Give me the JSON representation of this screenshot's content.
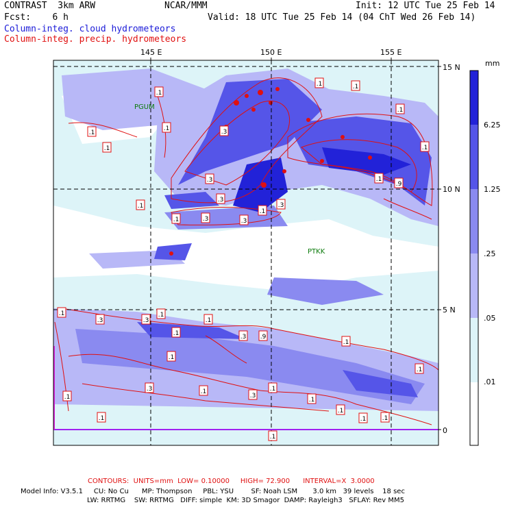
{
  "header": {
    "model": "CONTRAST  3km ARW",
    "org": "NCAR/MMM",
    "init": "Init: 12 UTC Tue 25 Feb 14",
    "fcst": "Fcst:    6 h",
    "valid": "Valid: 18 UTC Tue 25 Feb 14 (04 ChT Wed 26 Feb 14)",
    "field1": "Column-integ. cloud hydrometeors",
    "field2": "Column-integ. precip. hydrometeors"
  },
  "map": {
    "lon_labels": [
      "145 E",
      "150 E",
      "155 E"
    ],
    "lat_labels": [
      "15 N",
      "10 N",
      "5 N",
      "0"
    ],
    "stations": [
      "PGUM",
      "PTKK"
    ],
    "contour_box_labels": [
      ".1",
      ".1",
      ".1",
      ".1",
      ".1",
      ".1",
      ".3",
      ".3",
      ".3",
      ".3",
      ".3",
      ".1",
      ".1",
      ".1",
      ".9",
      ".3",
      ".1",
      ".1",
      ".1",
      ".3",
      ".3",
      ".1",
      ".1",
      ".1",
      ".1",
      ".1",
      ".3",
      ".9",
      ".1",
      ".1",
      ".1",
      ".3",
      ".1",
      ".1",
      ".1",
      ".1",
      ".1",
      ".1",
      ".1",
      ".1",
      ".3"
    ]
  },
  "colorbar": {
    "unit": "mm",
    "levels": [
      "6.25",
      "1.25",
      ".25",
      ".05",
      ".01"
    ],
    "colors": [
      "#2222d8",
      "#5555e8",
      "#8a8af0",
      "#b8b8f7",
      "#ddf4f8",
      "#ffffff"
    ]
  },
  "footer": {
    "contours": "CONTOURS:  UNITS=mm  LOW= 0.10000     HIGH= 72.900      INTERVAL=X  3.0000",
    "model_info_1": "Model Info: V3.5.1     CU: No Cu      MP: Thompson     PBL: YSU        SF: Noah LSM       3.0 km   39 levels    18 sec",
    "model_info_2": "LW: RRTMG    SW: RRTMG   DIFF: simple  KM: 3D Smagor  DAMP: Rayleigh3   SFLAY: Rev MM5"
  }
}
